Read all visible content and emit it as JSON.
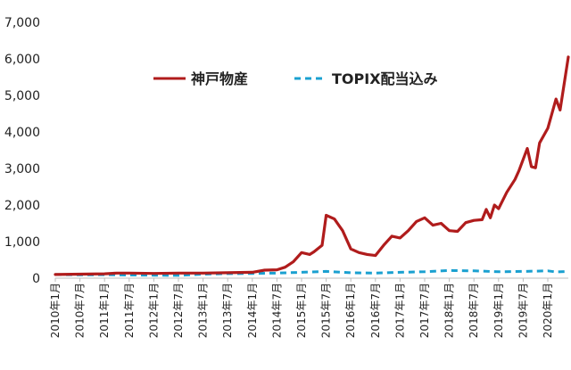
{
  "chart_data": {
    "type": "line",
    "title": "",
    "xlabel": "",
    "ylabel": "",
    "ylim": [
      0,
      7000
    ],
    "yticks": [
      "0",
      "1,000",
      "2,000",
      "3,000",
      "4,000",
      "5,000",
      "6,000",
      "7,000"
    ],
    "ytick_values": [
      0,
      1000,
      2000,
      3000,
      4000,
      5000,
      6000,
      7000
    ],
    "xlim": [
      "2010-01",
      "2020-06"
    ],
    "xticks": [
      "2010年1月",
      "2010年7月",
      "2011年1月",
      "2011年7月",
      "2012年1月",
      "2012年7月",
      "2013年1月",
      "2013年7月",
      "2014年1月",
      "2014年7月",
      "2015年1月",
      "2015年7月",
      "2016年1月",
      "2016年7月",
      "2017年1月",
      "2017年7月",
      "2018年1月",
      "2018年7月",
      "2019年1月",
      "2019年7月",
      "2020年1月"
    ],
    "legend_position": "top-center",
    "grid": false,
    "series": [
      {
        "name": "神戸物産",
        "color": "#b01c1c",
        "style": "solid",
        "points": [
          [
            "2010-01",
            100
          ],
          [
            "2010-07",
            110
          ],
          [
            "2011-01",
            120
          ],
          [
            "2011-04",
            140
          ],
          [
            "2011-07",
            140
          ],
          [
            "2012-01",
            130
          ],
          [
            "2012-07",
            140
          ],
          [
            "2013-01",
            140
          ],
          [
            "2013-07",
            150
          ],
          [
            "2014-01",
            160
          ],
          [
            "2014-04",
            220
          ],
          [
            "2014-07",
            230
          ],
          [
            "2014-09",
            300
          ],
          [
            "2014-11",
            450
          ],
          [
            "2015-01",
            700
          ],
          [
            "2015-03",
            650
          ],
          [
            "2015-04",
            720
          ],
          [
            "2015-06",
            900
          ],
          [
            "2015-07",
            1720
          ],
          [
            "2015-09",
            1620
          ],
          [
            "2015-11",
            1300
          ],
          [
            "2016-01",
            800
          ],
          [
            "2016-03",
            700
          ],
          [
            "2016-05",
            650
          ],
          [
            "2016-07",
            620
          ],
          [
            "2016-09",
            900
          ],
          [
            "2016-11",
            1150
          ],
          [
            "2017-01",
            1100
          ],
          [
            "2017-03",
            1300
          ],
          [
            "2017-05",
            1550
          ],
          [
            "2017-07",
            1650
          ],
          [
            "2017-09",
            1450
          ],
          [
            "2017-11",
            1500
          ],
          [
            "2018-01",
            1300
          ],
          [
            "2018-03",
            1280
          ],
          [
            "2018-05",
            1520
          ],
          [
            "2018-07",
            1580
          ],
          [
            "2018-09",
            1600
          ],
          [
            "2018-10",
            1880
          ],
          [
            "2018-11",
            1650
          ],
          [
            "2018-12",
            2000
          ],
          [
            "2019-01",
            1900
          ],
          [
            "2019-03",
            2350
          ],
          [
            "2019-05",
            2700
          ],
          [
            "2019-06",
            2950
          ],
          [
            "2019-08",
            3550
          ],
          [
            "2019-09",
            3050
          ],
          [
            "2019-10",
            3020
          ],
          [
            "2019-11",
            3700
          ],
          [
            "2020-01",
            4100
          ],
          [
            "2020-03",
            4900
          ],
          [
            "2020-04",
            4600
          ],
          [
            "2020-06",
            6050
          ]
        ]
      },
      {
        "name": "TOPIX配当込み",
        "color": "#1aa0d0",
        "style": "dashed",
        "points": [
          [
            "2010-01",
            100
          ],
          [
            "2010-07",
            90
          ],
          [
            "2011-01",
            95
          ],
          [
            "2011-07",
            85
          ],
          [
            "2012-01",
            80
          ],
          [
            "2012-07",
            75
          ],
          [
            "2013-01",
            110
          ],
          [
            "2013-07",
            125
          ],
          [
            "2014-01",
            130
          ],
          [
            "2014-07",
            140
          ],
          [
            "2015-01",
            160
          ],
          [
            "2015-07",
            185
          ],
          [
            "2016-01",
            150
          ],
          [
            "2016-07",
            140
          ],
          [
            "2017-01",
            160
          ],
          [
            "2017-07",
            175
          ],
          [
            "2018-01",
            210
          ],
          [
            "2018-07",
            200
          ],
          [
            "2019-01",
            175
          ],
          [
            "2019-07",
            185
          ],
          [
            "2020-01",
            200
          ],
          [
            "2020-03",
            170
          ],
          [
            "2020-06",
            185
          ]
        ]
      }
    ]
  }
}
